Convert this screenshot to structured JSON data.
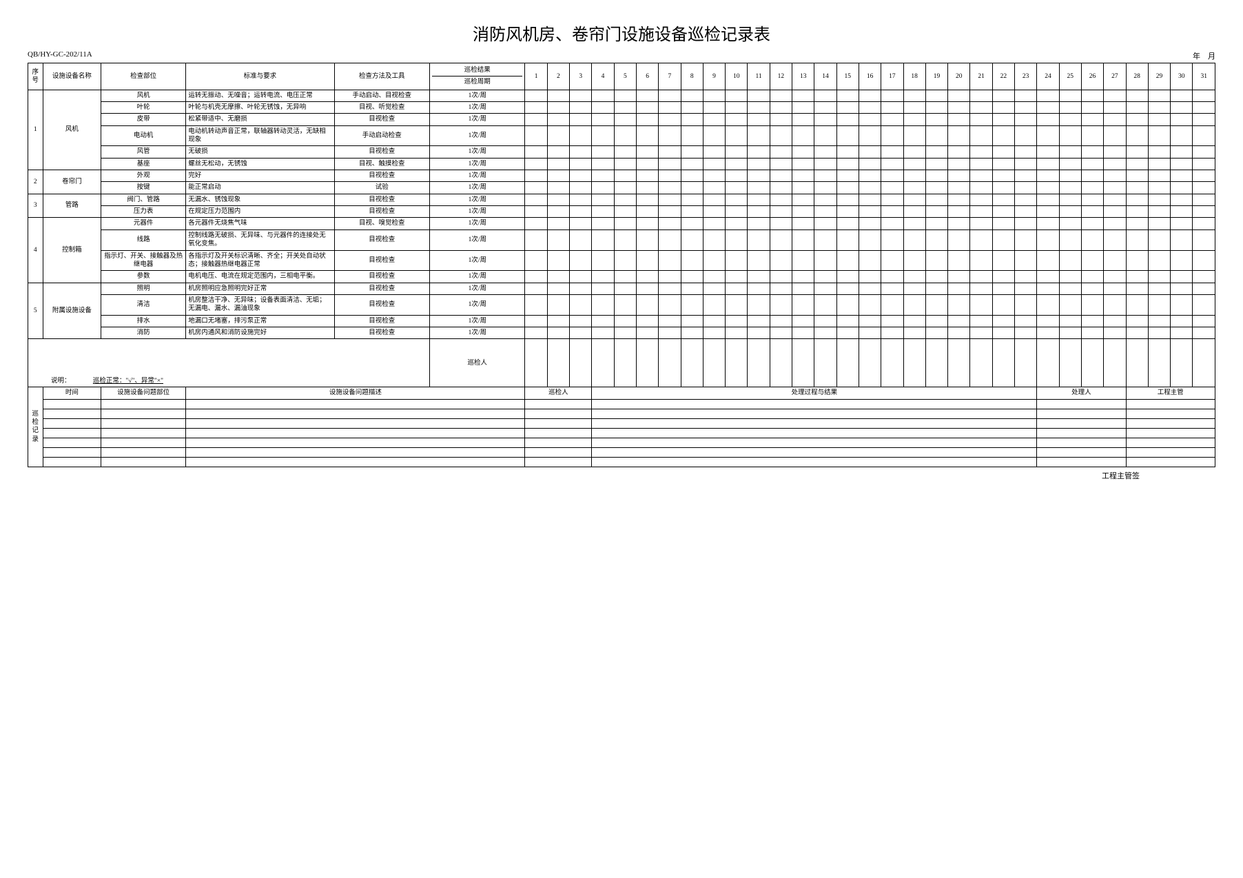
{
  "doc_code": "QB/HY-GC-202/11A",
  "title": "消防风机房、卷帘门设施设备巡检记录表",
  "date_label": "年　月",
  "headers": {
    "seq": "序号",
    "name": "设施设备名称",
    "part": "检查部位",
    "std": "标准与要求",
    "method": "检查方法及工具",
    "cycle_top": "巡检结果",
    "cycle_bottom": "巡检周期"
  },
  "days": [
    "1",
    "2",
    "3",
    "4",
    "5",
    "6",
    "7",
    "8",
    "9",
    "10",
    "11",
    "12",
    "13",
    "14",
    "15",
    "16",
    "17",
    "18",
    "19",
    "20",
    "21",
    "22",
    "23",
    "24",
    "25",
    "26",
    "27",
    "28",
    "29",
    "30",
    "31"
  ],
  "rows": [
    {
      "seq": "1",
      "name": "风机",
      "items": [
        {
          "part": "风机",
          "std": "运转无振动、无噪音；运转电流、电压正常",
          "method": "手动启动、目视检查",
          "cycle": "1次/周"
        },
        {
          "part": "叶轮",
          "std": "叶轮与机壳无摩擦、叶轮无锈蚀，无异响",
          "method": "目视、听觉检查",
          "cycle": "1次/周"
        },
        {
          "part": "皮带",
          "std": "松紧带适中、无磨损",
          "method": "目视检查",
          "cycle": "1次/周"
        },
        {
          "part": "电动机",
          "std": "电动机转动声音正常，联轴器转动灵活，无缺相现象",
          "method": "手动启动检查",
          "cycle": "1次/周"
        },
        {
          "part": "风管",
          "std": "无破损",
          "method": "目视检查",
          "cycle": "1次/周"
        },
        {
          "part": "基座",
          "std": "螺丝无松动，无锈蚀",
          "method": "目视、触摸检查",
          "cycle": "1次/周"
        }
      ]
    },
    {
      "seq": "2",
      "name": "卷帘门",
      "items": [
        {
          "part": "外观",
          "std": "完好",
          "method": "目视检查",
          "cycle": "1次/周"
        },
        {
          "part": "按键",
          "std": "能正常启动",
          "method": "试验",
          "cycle": "1次/周"
        }
      ]
    },
    {
      "seq": "3",
      "name": "管路",
      "items": [
        {
          "part": "阀门、管路",
          "std": "无漏水、锈蚀现象",
          "method": "目视检查",
          "cycle": "1次/周"
        },
        {
          "part": "压力表",
          "std": "在规定压力范围内",
          "method": "目视检查",
          "cycle": "1次/周"
        }
      ]
    },
    {
      "seq": "4",
      "name": "控制箱",
      "items": [
        {
          "part": "元器件",
          "std": "各元器件无烧焦气味",
          "method": "目视、嗅觉检查",
          "cycle": "1次/周"
        },
        {
          "part": "线路",
          "std": "控制线路无破损、无异味、与元器件的连接处无氧化变焦。",
          "method": "目视检查",
          "cycle": "1次/周"
        },
        {
          "part": "指示灯、开关、接触器及热继电器",
          "std": "各指示灯及开关标识清晰、齐全；开关处自动状态；接触器热继电器正常",
          "method": "目视检查",
          "cycle": "1次/周"
        },
        {
          "part": "参数",
          "std": "电机电压、电流在规定范围内，三相电平衡。",
          "method": "目视检查",
          "cycle": "1次/周"
        }
      ]
    },
    {
      "seq": "5",
      "name": "附属设施设备",
      "items": [
        {
          "part": "照明",
          "std": "机房照明应急照明完好正常",
          "method": "目视检查",
          "cycle": "1次/周"
        },
        {
          "part": "清洁",
          "std": "机房整洁干净、无异味；设备表面清洁、无垢；无漏电、漏水、漏油现象",
          "method": "目视检查",
          "cycle": "1次/周"
        },
        {
          "part": "排水",
          "std": "地漏口无堵塞，排污泵正常",
          "method": "目视检查",
          "cycle": "1次/周"
        },
        {
          "part": "消防",
          "std": "机房内通风和消防设施完好",
          "method": "目视检查",
          "cycle": "1次/周"
        }
      ]
    }
  ],
  "inspector_label": "巡检人",
  "note_label": "说明：",
  "note_text": "巡检正常：\"√\"、异常\"×\"",
  "record": {
    "label": "巡检记录",
    "time": "时间",
    "problem_part": "设施设备问题部位",
    "problem_desc": "设施设备问题描述",
    "inspector": "巡检人",
    "process": "处理过程与结果",
    "handler": "处理人",
    "supervisor": "工程主管"
  },
  "footer_sig": "工程主管签"
}
